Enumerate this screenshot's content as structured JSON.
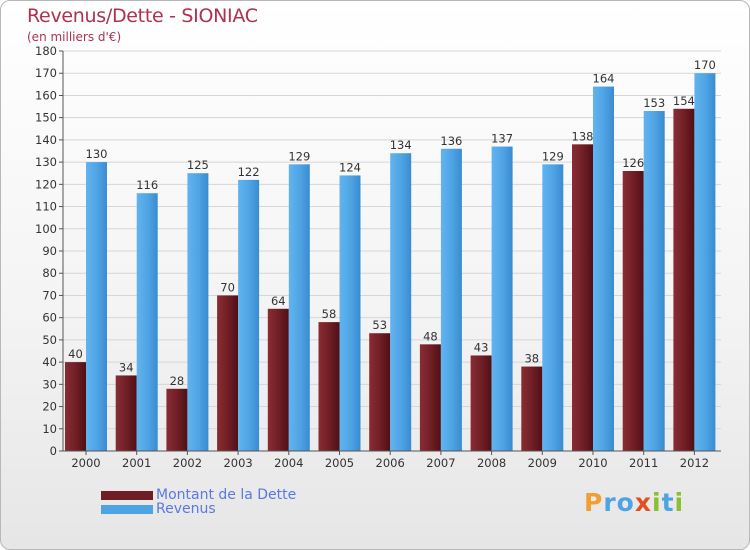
{
  "header": {
    "title": "Revenus/Dette - SIONIAC",
    "subtitle": "(en milliers d'€)"
  },
  "colors": {
    "debt": "#6e1e24",
    "revenue": "#4ea3e3",
    "title": "#b03050",
    "legend_text": "#5a78e0"
  },
  "chart_data": {
    "type": "bar",
    "title": "Revenus/Dette - SIONIAC",
    "subtitle": "(en milliers d'€)",
    "categories": [
      "2000",
      "2001",
      "2002",
      "2003",
      "2004",
      "2005",
      "2006",
      "2007",
      "2008",
      "2009",
      "2010",
      "2011",
      "2012"
    ],
    "series": [
      {
        "name": "Montant de la Dette",
        "values": [
          40,
          34,
          28,
          70,
          64,
          58,
          53,
          48,
          43,
          38,
          138,
          126,
          154
        ]
      },
      {
        "name": "Revenus",
        "values": [
          130,
          116,
          125,
          122,
          129,
          124,
          134,
          136,
          137,
          129,
          164,
          153,
          170
        ]
      }
    ],
    "yticks": [
      0,
      10,
      20,
      30,
      40,
      50,
      60,
      70,
      80,
      90,
      100,
      110,
      120,
      130,
      140,
      150,
      160,
      170,
      180
    ],
    "ylim": [
      0,
      180
    ],
    "grid": true,
    "legend_position": "bottom-left"
  },
  "legend": {
    "items": [
      {
        "label": "Montant de la Dette"
      },
      {
        "label": "Revenus"
      }
    ]
  },
  "logo": {
    "text": "Proxiti",
    "letters": [
      {
        "ch": "P",
        "color": "#f0a030"
      },
      {
        "ch": "r",
        "color": "#4ea3e3"
      },
      {
        "ch": "o",
        "color": "#4ea3e3"
      },
      {
        "ch": "x",
        "color": "#e05020"
      },
      {
        "ch": "i",
        "color": "#8cbf30"
      },
      {
        "ch": "t",
        "color": "#4ea3e3"
      },
      {
        "ch": "i",
        "color": "#8cbf30"
      }
    ]
  }
}
